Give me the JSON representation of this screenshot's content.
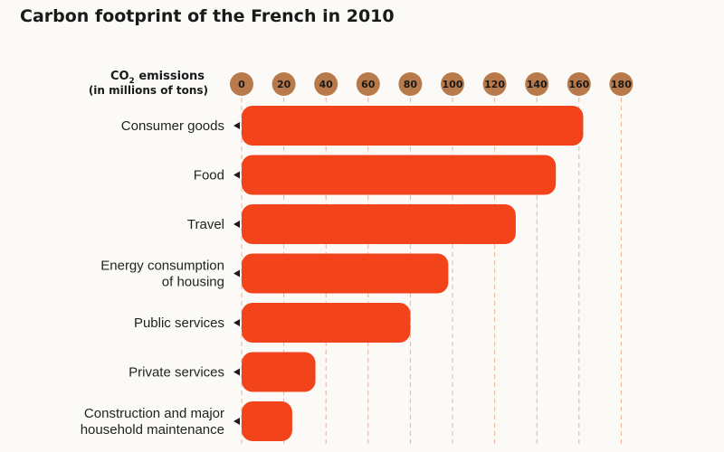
{
  "chart_data": {
    "type": "bar",
    "orientation": "horizontal",
    "title": "Carbon footprint of the French in 2010",
    "unit_label_main": "CO",
    "unit_label_sub": "2",
    "unit_label_suffix": " emissions",
    "unit_label_line2": "(in millions of tons)",
    "xlim": [
      0,
      180
    ],
    "ticks": [
      "0",
      "20",
      "40",
      "60",
      "80",
      "100",
      "120",
      "140",
      "160",
      "180"
    ],
    "tick_values": [
      0,
      20,
      40,
      60,
      80,
      100,
      120,
      140,
      160,
      180
    ],
    "categories": [
      [
        "Consumer goods"
      ],
      [
        "Food"
      ],
      [
        "Travel"
      ],
      [
        "Energy consumption",
        "of housing"
      ],
      [
        "Public services"
      ],
      [
        "Private services"
      ],
      [
        "Construction and major",
        "household maintenance"
      ]
    ],
    "values": [
      162,
      149,
      130,
      98,
      80,
      35,
      24
    ],
    "grid": true
  },
  "colors": {
    "bar": "#f2431b",
    "tick_circle": "#b87a4a",
    "gridline": "#e8b39a",
    "marker": "#1a1a1a"
  }
}
